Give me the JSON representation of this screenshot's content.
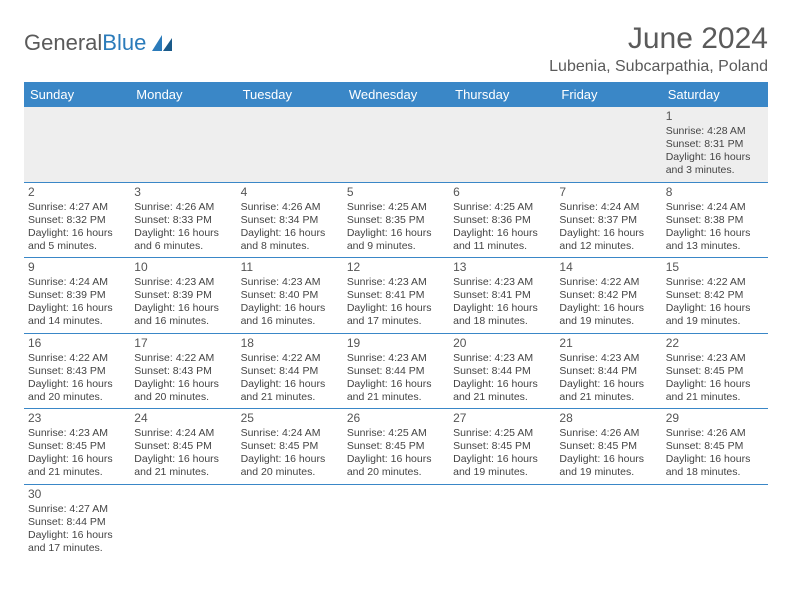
{
  "brand": {
    "part1": "General",
    "part2": "Blue"
  },
  "title": "June 2024",
  "location": "Lubenia, Subcarpathia, Poland",
  "dayNames": [
    "Sunday",
    "Monday",
    "Tuesday",
    "Wednesday",
    "Thursday",
    "Friday",
    "Saturday"
  ],
  "colors": {
    "headerBg": "#3a87c7",
    "headerText": "#ffffff",
    "brandGray": "#5a5a5a",
    "brandBlue": "#2b7bba",
    "firstWeekBg": "#eeeeee",
    "cellBorder": "#3a87c7"
  },
  "weeks": [
    [
      null,
      null,
      null,
      null,
      null,
      null,
      {
        "d": "1",
        "sr": "4:28 AM",
        "ss": "8:31 PM",
        "dl": "16 hours and 3 minutes."
      }
    ],
    [
      {
        "d": "2",
        "sr": "4:27 AM",
        "ss": "8:32 PM",
        "dl": "16 hours and 5 minutes."
      },
      {
        "d": "3",
        "sr": "4:26 AM",
        "ss": "8:33 PM",
        "dl": "16 hours and 6 minutes."
      },
      {
        "d": "4",
        "sr": "4:26 AM",
        "ss": "8:34 PM",
        "dl": "16 hours and 8 minutes."
      },
      {
        "d": "5",
        "sr": "4:25 AM",
        "ss": "8:35 PM",
        "dl": "16 hours and 9 minutes."
      },
      {
        "d": "6",
        "sr": "4:25 AM",
        "ss": "8:36 PM",
        "dl": "16 hours and 11 minutes."
      },
      {
        "d": "7",
        "sr": "4:24 AM",
        "ss": "8:37 PM",
        "dl": "16 hours and 12 minutes."
      },
      {
        "d": "8",
        "sr": "4:24 AM",
        "ss": "8:38 PM",
        "dl": "16 hours and 13 minutes."
      }
    ],
    [
      {
        "d": "9",
        "sr": "4:24 AM",
        "ss": "8:39 PM",
        "dl": "16 hours and 14 minutes."
      },
      {
        "d": "10",
        "sr": "4:23 AM",
        "ss": "8:39 PM",
        "dl": "16 hours and 16 minutes."
      },
      {
        "d": "11",
        "sr": "4:23 AM",
        "ss": "8:40 PM",
        "dl": "16 hours and 16 minutes."
      },
      {
        "d": "12",
        "sr": "4:23 AM",
        "ss": "8:41 PM",
        "dl": "16 hours and 17 minutes."
      },
      {
        "d": "13",
        "sr": "4:23 AM",
        "ss": "8:41 PM",
        "dl": "16 hours and 18 minutes."
      },
      {
        "d": "14",
        "sr": "4:22 AM",
        "ss": "8:42 PM",
        "dl": "16 hours and 19 minutes."
      },
      {
        "d": "15",
        "sr": "4:22 AM",
        "ss": "8:42 PM",
        "dl": "16 hours and 19 minutes."
      }
    ],
    [
      {
        "d": "16",
        "sr": "4:22 AM",
        "ss": "8:43 PM",
        "dl": "16 hours and 20 minutes."
      },
      {
        "d": "17",
        "sr": "4:22 AM",
        "ss": "8:43 PM",
        "dl": "16 hours and 20 minutes."
      },
      {
        "d": "18",
        "sr": "4:22 AM",
        "ss": "8:44 PM",
        "dl": "16 hours and 21 minutes."
      },
      {
        "d": "19",
        "sr": "4:23 AM",
        "ss": "8:44 PM",
        "dl": "16 hours and 21 minutes."
      },
      {
        "d": "20",
        "sr": "4:23 AM",
        "ss": "8:44 PM",
        "dl": "16 hours and 21 minutes."
      },
      {
        "d": "21",
        "sr": "4:23 AM",
        "ss": "8:44 PM",
        "dl": "16 hours and 21 minutes."
      },
      {
        "d": "22",
        "sr": "4:23 AM",
        "ss": "8:45 PM",
        "dl": "16 hours and 21 minutes."
      }
    ],
    [
      {
        "d": "23",
        "sr": "4:23 AM",
        "ss": "8:45 PM",
        "dl": "16 hours and 21 minutes."
      },
      {
        "d": "24",
        "sr": "4:24 AM",
        "ss": "8:45 PM",
        "dl": "16 hours and 21 minutes."
      },
      {
        "d": "25",
        "sr": "4:24 AM",
        "ss": "8:45 PM",
        "dl": "16 hours and 20 minutes."
      },
      {
        "d": "26",
        "sr": "4:25 AM",
        "ss": "8:45 PM",
        "dl": "16 hours and 20 minutes."
      },
      {
        "d": "27",
        "sr": "4:25 AM",
        "ss": "8:45 PM",
        "dl": "16 hours and 19 minutes."
      },
      {
        "d": "28",
        "sr": "4:26 AM",
        "ss": "8:45 PM",
        "dl": "16 hours and 19 minutes."
      },
      {
        "d": "29",
        "sr": "4:26 AM",
        "ss": "8:45 PM",
        "dl": "16 hours and 18 minutes."
      }
    ],
    [
      {
        "d": "30",
        "sr": "4:27 AM",
        "ss": "8:44 PM",
        "dl": "16 hours and 17 minutes."
      },
      null,
      null,
      null,
      null,
      null,
      null
    ]
  ],
  "labels": {
    "sunrise": "Sunrise:",
    "sunset": "Sunset:",
    "daylight": "Daylight:"
  }
}
